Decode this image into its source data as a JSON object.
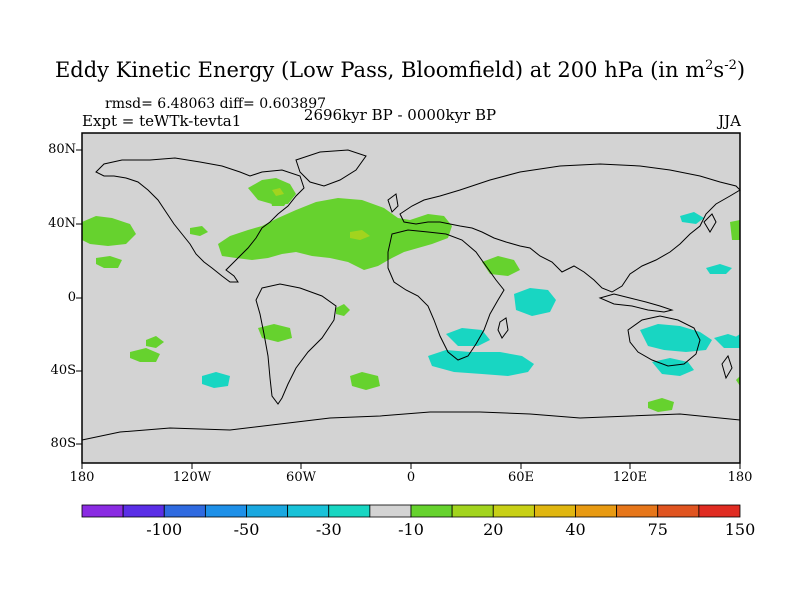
{
  "title": "Eddy Kinetic Energy (Low Pass, Bloomfield) at 200 hPa (in m",
  "title_unit_sup1": "2",
  "title_unit_mid": "s",
  "title_unit_sup2": "-2",
  "title_end": ")",
  "stats_line": "rmsd= 6.48063 diff= 0.603897",
  "experiment": "Expt = teWTk-tevta1",
  "period": "2696kyr BP - 0000kyr BP",
  "season": "JJA",
  "lat_labels": [
    "80N",
    "40N",
    "0",
    "40S",
    "80S"
  ],
  "lon_labels": [
    "180",
    "120W",
    "60W",
    "0",
    "60E",
    "120E",
    "180"
  ],
  "colorbar": {
    "colors": [
      "#8a2be2",
      "#5a2ee6",
      "#2f6ae0",
      "#1e90e8",
      "#1aa8e0",
      "#19c2d8",
      "#18d6c2",
      "#d3d3d3",
      "#66d22e",
      "#a2d41e",
      "#c8d016",
      "#e0b610",
      "#e89a12",
      "#e6761a",
      "#e05420",
      "#e02c22"
    ],
    "labels": [
      "-100",
      "-50",
      "-30",
      "-10",
      "20",
      "40",
      "75",
      "150"
    ]
  },
  "colors": {
    "land_background": "#d3d3d3",
    "positive_anomaly": "#66d22e",
    "positive_light": "#a2d41e",
    "negative_anomaly": "#18d6c2"
  }
}
